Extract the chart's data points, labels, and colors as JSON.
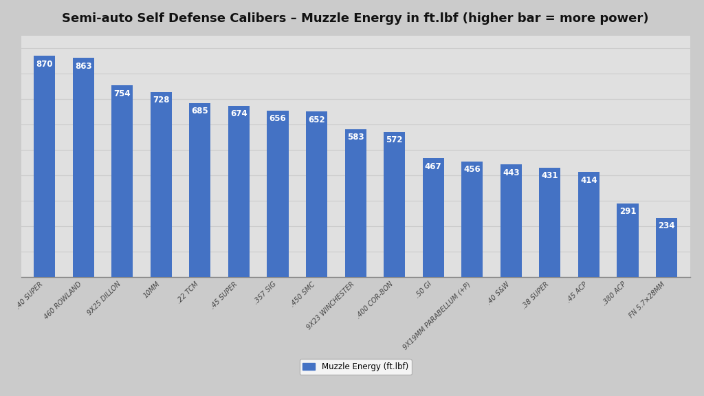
{
  "title": "Semi-auto Self Defense Calibers – Muzzle Energy in ft.lbf (higher bar = more power)",
  "categories": [
    ".40 SUPER",
    "460 ROWLAND",
    "9X25 DILLON",
    "10MM",
    ".22 TCM",
    ".45 SUPER",
    ".357 SIG",
    ".450 SMC",
    "9X23 WINCHESTER",
    ".400 COR-BON",
    ".50 GI",
    "9X19MM PARABELLUM (+P)",
    ".40 S&W",
    ".38 SUPER",
    ".45 ACP",
    ".380 ACP",
    "FN 5.7×28MM"
  ],
  "values": [
    870,
    863,
    754,
    728,
    685,
    674,
    656,
    652,
    583,
    572,
    467,
    456,
    443,
    431,
    414,
    291,
    234
  ],
  "bar_color": "#4472C4",
  "label_color": "#FFFFFF",
  "background_color_top": "#E8E8E8",
  "background_color_bottom": "#C8C8C8",
  "title_fontsize": 13,
  "label_fontsize": 8.5,
  "xtick_fontsize": 7,
  "legend_label": "Muzzle Energy (ft.lbf)",
  "ylim": [
    0,
    950
  ],
  "grid_color": "#CCCCCC",
  "bar_width": 0.55
}
